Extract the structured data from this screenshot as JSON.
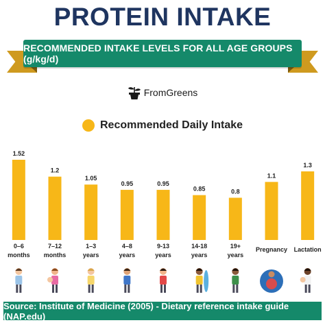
{
  "title": "PROTEIN INTAKE",
  "banner": "RECOMMENDED INTAKE LEVELS FOR ALL AGE GROUPS (g/kg/d)",
  "logo_text": "FromGreens",
  "colors": {
    "bar": "#f7b718",
    "banner": "#15896a",
    "title": "#1f3560",
    "ribbon": "#cf9a1f"
  },
  "chart_data": {
    "type": "bar",
    "categories": [
      [
        "0–6",
        "months"
      ],
      [
        "7–12",
        "months"
      ],
      [
        "1–3",
        "years"
      ],
      [
        "4–8",
        "years"
      ],
      [
        "9-13",
        "years"
      ],
      [
        "14-18",
        "years"
      ],
      [
        "19+",
        "years"
      ],
      [
        "Pregnancy"
      ],
      [
        "Lactation"
      ]
    ],
    "series": [
      {
        "name": "Recommended Daily Intake",
        "values": [
          1.52,
          1.2,
          1.05,
          0.95,
          0.95,
          0.85,
          0.8,
          1.1,
          1.3
        ]
      }
    ],
    "data_labels": [
      "1.52",
      "1.2",
      "1.05",
      "0.95",
      "0.95",
      "0.85",
      "0.8",
      "1.1",
      "1.3"
    ],
    "ylim": [
      0,
      1.52
    ],
    "grid": false,
    "legend_position": "top"
  },
  "figure_icons": [
    "baby-bathing-icon",
    "mother-child-icon",
    "toddler-icon",
    "young-boy-icon",
    "girl-icon",
    "teen-surfer-icon",
    "adult-man-icon",
    "pregnant-woman-icon",
    "mother-baby-icon"
  ],
  "source": "Source: Institute of Medicine (2005) -  Dietary reference intake guide (NAP.edu)"
}
